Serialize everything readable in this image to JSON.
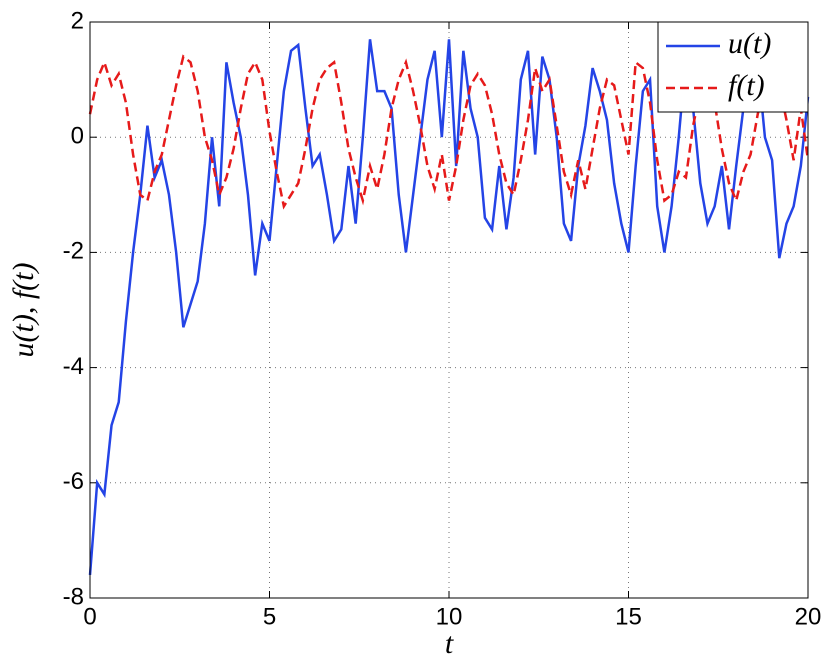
{
  "chart_data": {
    "type": "line",
    "xlabel": "t",
    "ylabel": "u(t),  f(t)",
    "x": [
      0,
      0.2,
      0.4,
      0.6,
      0.8,
      1,
      1.2,
      1.4,
      1.6,
      1.8,
      2,
      2.2,
      2.4,
      2.6,
      2.8,
      3,
      3.2,
      3.4,
      3.6,
      3.8,
      4,
      4.2,
      4.4,
      4.6,
      4.8,
      5,
      5.2,
      5.4,
      5.6,
      5.8,
      6,
      6.2,
      6.4,
      6.6,
      6.8,
      7,
      7.2,
      7.4,
      7.6,
      7.8,
      8,
      8.2,
      8.4,
      8.6,
      8.8,
      9,
      9.2,
      9.4,
      9.6,
      9.8,
      10,
      10.2,
      10.4,
      10.6,
      10.8,
      11,
      11.2,
      11.4,
      11.6,
      11.8,
      12,
      12.2,
      12.4,
      12.6,
      12.8,
      13,
      13.2,
      13.4,
      13.6,
      13.8,
      14,
      14.2,
      14.4,
      14.6,
      14.8,
      15,
      15.2,
      15.4,
      15.6,
      15.8,
      16,
      16.2,
      16.4,
      16.6,
      16.8,
      17,
      17.2,
      17.4,
      17.6,
      17.8,
      18,
      18.2,
      18.4,
      18.6,
      18.8,
      19,
      19.2,
      19.4,
      19.6,
      19.8,
      20
    ],
    "series": [
      {
        "name": "u(t)",
        "color": "#2444e6",
        "dash": "solid",
        "values": [
          -7.6,
          -6,
          -6.2,
          -5,
          -4.6,
          -3.2,
          -2,
          -1,
          0.2,
          -0.7,
          -0.4,
          -1,
          -2,
          -3.3,
          -2.9,
          -2.5,
          -1.5,
          0,
          -1.2,
          1.3,
          0.6,
          0,
          -1,
          -2.4,
          -1.5,
          -1.8,
          -0.5,
          0.8,
          1.5,
          1.6,
          0.5,
          -0.5,
          -0.3,
          -1,
          -1.8,
          -1.6,
          -0.5,
          -1.5,
          0,
          1.7,
          0.8,
          0.8,
          0.5,
          -1,
          -2,
          -1,
          0,
          1,
          1.5,
          0,
          1.7,
          -0.5,
          1.5,
          0.5,
          0,
          -1.4,
          -1.6,
          -0.5,
          -1.6,
          -0.7,
          1,
          1.5,
          -0.3,
          1.4,
          1,
          0,
          -1.5,
          -1.8,
          -0.5,
          0.2,
          1.2,
          0.8,
          0.3,
          -0.8,
          -1.5,
          -2,
          -0.5,
          0.8,
          1,
          -1.2,
          -2,
          -1.2,
          0,
          1.4,
          0.5,
          -0.8,
          -1.5,
          -1.2,
          -0.5,
          -1.6,
          -0.5,
          0.5,
          1,
          1.3,
          0,
          -0.4,
          -2.1,
          -1.5,
          -1.2,
          -0.5,
          0.7
        ]
      },
      {
        "name": "f(t)",
        "color": "#e61a1a",
        "dash": "dashed",
        "values": [
          0.4,
          1,
          1.3,
          0.9,
          1.1,
          0.6,
          -0.3,
          -1,
          -1.1,
          -0.6,
          -0.3,
          0.3,
          0.9,
          1.4,
          1.3,
          0.8,
          0,
          -0.4,
          -1,
          -0.7,
          -0.2,
          0.5,
          1.1,
          1.3,
          1,
          0.1,
          -0.6,
          -1.2,
          -1,
          -0.8,
          -0.2,
          0.5,
          1,
          1.2,
          1.3,
          0.6,
          -0.2,
          -0.7,
          -1.1,
          -0.5,
          -0.9,
          -0.3,
          0.5,
          1,
          1.3,
          0.8,
          0.2,
          -0.5,
          -0.9,
          -0.3,
          -1.1,
          -0.5,
          0.3,
          0.9,
          1.1,
          0.9,
          0.4,
          -0.3,
          -0.8,
          -1,
          -0.4,
          0.3,
          1.2,
          0.8,
          1,
          0.2,
          -0.6,
          -1,
          -0.4,
          -0.9,
          -0.2,
          0.5,
          1,
          0.9,
          0.3,
          -0.3,
          1.3,
          1.2,
          0.6,
          -0.4,
          -1.1,
          -1,
          -0.6,
          -0.7,
          0.2,
          0.8,
          1.2,
          0.6,
          -0.2,
          -0.8,
          -1.1,
          -0.6,
          -0.3,
          0.4,
          0.9,
          1.2,
          0.9,
          0.3,
          -0.4,
          0.5,
          -0.4
        ]
      }
    ],
    "xlim": [
      0,
      20
    ],
    "xticks": [
      0,
      5,
      10,
      15,
      20
    ],
    "ylim": [
      -8,
      2
    ],
    "yticks": [
      -8,
      -6,
      -4,
      -2,
      0,
      2
    ],
    "grid": true,
    "legend": "top-right"
  }
}
